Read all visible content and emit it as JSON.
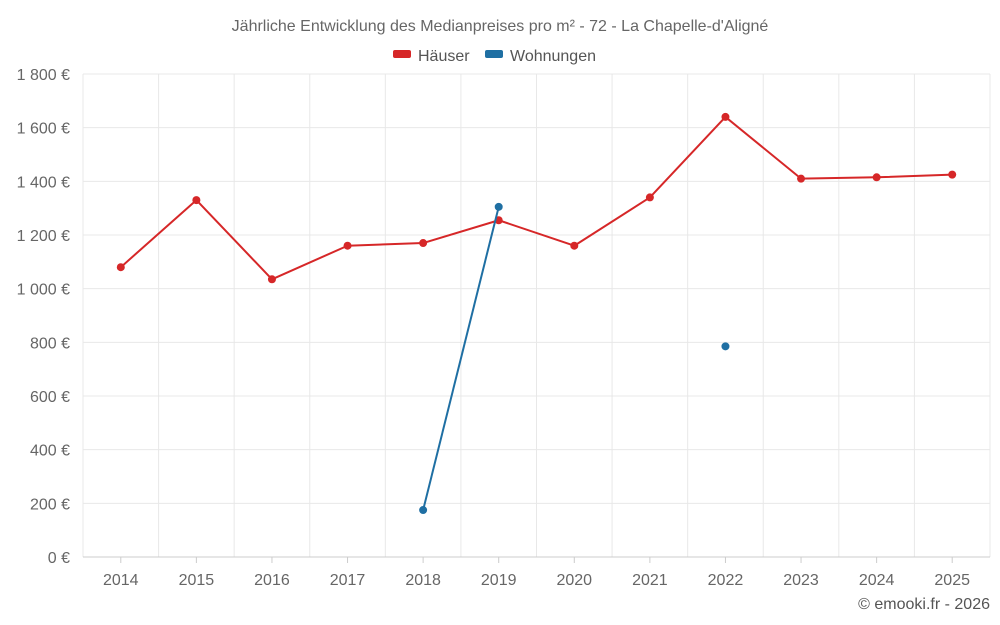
{
  "chart_data": {
    "type": "line",
    "title": "Jährliche Entwicklung des Medianpreises pro m² - 72 - La Chapelle-d'Aligné",
    "categories": [
      "2014",
      "2015",
      "2016",
      "2017",
      "2018",
      "2019",
      "2020",
      "2021",
      "2022",
      "2023",
      "2024",
      "2025"
    ],
    "ylim": [
      0,
      1800
    ],
    "yticks": [
      0,
      200,
      400,
      600,
      800,
      1000,
      1200,
      1400,
      1600,
      1800
    ],
    "ytick_labels": [
      "0 €",
      "200 €",
      "400 €",
      "600 €",
      "800 €",
      "1 000 €",
      "1 200 €",
      "1 400 €",
      "1 600 €",
      "1 800 €"
    ],
    "grid": true,
    "legend_position": "top-center",
    "series": [
      {
        "name": "Häuser",
        "color": "#d62728",
        "values": [
          1080,
          1330,
          1035,
          1160,
          1170,
          1255,
          1160,
          1340,
          1640,
          1410,
          1415,
          1425
        ]
      },
      {
        "name": "Wohnungen",
        "color": "#1f6fa3",
        "values": [
          null,
          null,
          null,
          null,
          175,
          1305,
          null,
          null,
          785,
          null,
          null,
          null
        ]
      }
    ]
  },
  "footer": {
    "copyright": "© emooki.fr - 2026"
  }
}
